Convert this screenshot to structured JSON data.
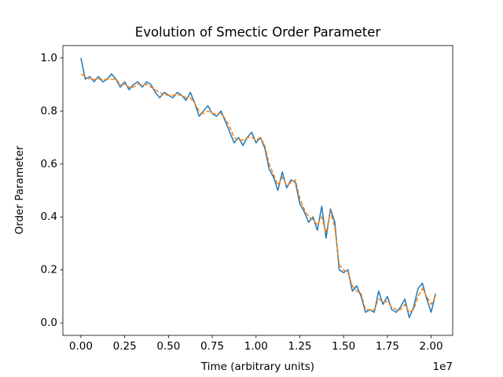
{
  "chart_data": {
    "type": "line",
    "title": "Evolution of Smectic Order Parameter",
    "x_label": "Time (arbitrary units)",
    "y_label": "Order Parameter",
    "x_offset_label": "1e7",
    "x": [
      0,
      250000,
      500000,
      750000,
      1000000,
      1250000,
      1500000,
      1750000,
      2000000,
      2250000,
      2500000,
      2750000,
      3000000,
      3250000,
      3500000,
      3750000,
      4000000,
      4250000,
      4500000,
      4750000,
      5000000,
      5250000,
      5500000,
      5750000,
      6000000,
      6250000,
      6500000,
      6750000,
      7000000,
      7250000,
      7500000,
      7750000,
      8000000,
      8250000,
      8500000,
      8750000,
      9000000,
      9250000,
      9500000,
      9750000,
      10000000,
      10250000,
      10500000,
      10750000,
      11000000,
      11250000,
      11500000,
      11750000,
      12000000,
      12250000,
      12500000,
      12750000,
      13000000,
      13250000,
      13500000,
      13750000,
      14000000,
      14250000,
      14500000,
      14750000,
      15000000,
      15250000,
      15500000,
      15750000,
      16000000,
      16250000,
      16500000,
      16750000,
      17000000,
      17250000,
      17500000,
      17750000,
      18000000,
      18250000,
      18500000,
      18750000,
      19000000,
      19250000,
      19500000,
      19750000,
      20000000,
      20250000
    ],
    "series": [
      {
        "color": "#1f77b4",
        "dashed": false,
        "values": [
          1.0,
          0.92,
          0.93,
          0.91,
          0.93,
          0.91,
          0.92,
          0.94,
          0.92,
          0.89,
          0.91,
          0.88,
          0.9,
          0.91,
          0.89,
          0.91,
          0.9,
          0.87,
          0.85,
          0.87,
          0.86,
          0.85,
          0.87,
          0.86,
          0.84,
          0.87,
          0.83,
          0.78,
          0.8,
          0.82,
          0.79,
          0.78,
          0.8,
          0.76,
          0.72,
          0.68,
          0.7,
          0.67,
          0.7,
          0.72,
          0.68,
          0.7,
          0.66,
          0.58,
          0.55,
          0.5,
          0.57,
          0.51,
          0.54,
          0.53,
          0.45,
          0.42,
          0.38,
          0.4,
          0.35,
          0.44,
          0.32,
          0.43,
          0.38,
          0.2,
          0.19,
          0.2,
          0.12,
          0.14,
          0.1,
          0.04,
          0.05,
          0.04,
          0.12,
          0.07,
          0.1,
          0.05,
          0.04,
          0.06,
          0.09,
          0.02,
          0.06,
          0.13,
          0.15,
          0.09,
          0.04,
          0.11
        ]
      },
      {
        "color": "#ff7f0e",
        "dashed": true,
        "values": [
          0.94,
          0.93,
          0.92,
          0.92,
          0.92,
          0.92,
          0.92,
          0.92,
          0.92,
          0.9,
          0.9,
          0.89,
          0.89,
          0.9,
          0.9,
          0.9,
          0.89,
          0.88,
          0.87,
          0.86,
          0.86,
          0.86,
          0.86,
          0.86,
          0.85,
          0.85,
          0.83,
          0.8,
          0.79,
          0.8,
          0.79,
          0.79,
          0.79,
          0.77,
          0.74,
          0.7,
          0.69,
          0.69,
          0.7,
          0.7,
          0.69,
          0.7,
          0.67,
          0.6,
          0.56,
          0.52,
          0.55,
          0.52,
          0.53,
          0.54,
          0.47,
          0.43,
          0.4,
          0.39,
          0.37,
          0.4,
          0.34,
          0.42,
          0.36,
          0.22,
          0.2,
          0.19,
          0.14,
          0.12,
          0.11,
          0.05,
          0.05,
          0.05,
          0.09,
          0.08,
          0.08,
          0.06,
          0.05,
          0.05,
          0.07,
          0.04,
          0.05,
          0.1,
          0.13,
          0.1,
          0.07,
          0.1
        ]
      }
    ],
    "xlim": [
      -1030000,
      21230000
    ],
    "ylim": [
      -0.047,
      1.047
    ],
    "xticks": [
      {
        "value": 0,
        "label": "0.00"
      },
      {
        "value": 2500000,
        "label": "0.25"
      },
      {
        "value": 5000000,
        "label": "0.50"
      },
      {
        "value": 7500000,
        "label": "0.75"
      },
      {
        "value": 10000000,
        "label": "1.00"
      },
      {
        "value": 12500000,
        "label": "1.25"
      },
      {
        "value": 15000000,
        "label": "1.50"
      },
      {
        "value": 17500000,
        "label": "1.75"
      },
      {
        "value": 20000000,
        "label": "2.00"
      }
    ],
    "yticks": [
      {
        "value": 0,
        "label": "0.0"
      },
      0.2,
      0.4,
      0.6,
      0.8,
      {
        "value": 1,
        "label": "1.0"
      }
    ],
    "grid": false
  }
}
